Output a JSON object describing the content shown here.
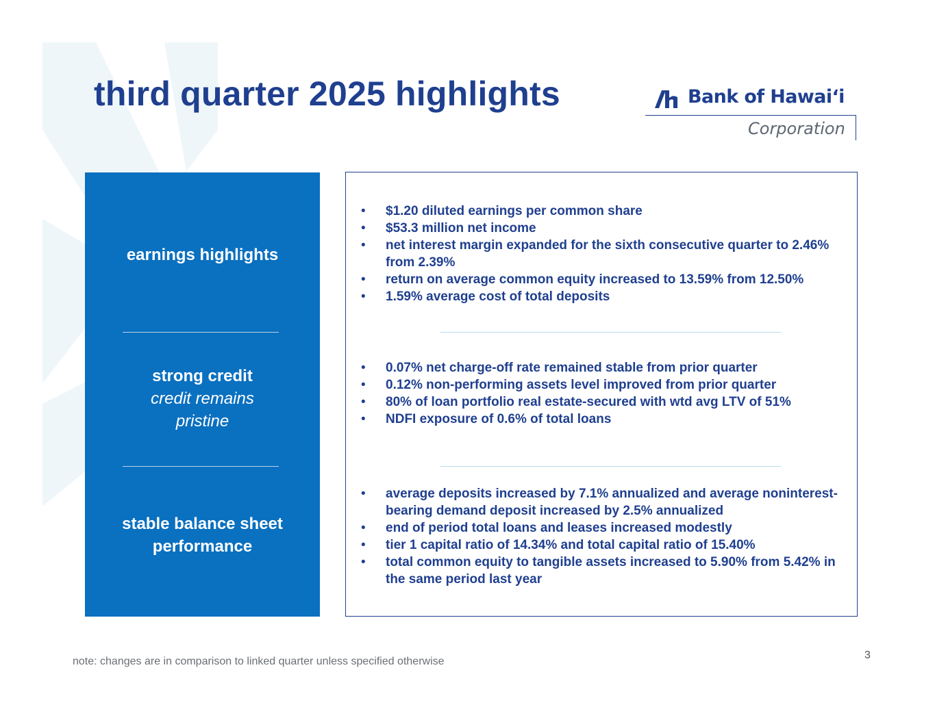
{
  "slide": {
    "title": "third quarter 2025 highlights",
    "page_number": "3",
    "note": "note: changes are in comparison to linked quarter unless specified otherwise"
  },
  "logo": {
    "name": "Bank of Hawaiʻi",
    "subtitle": "Corporation",
    "color": "#1f3f8f"
  },
  "colors": {
    "title": "#1f3f8f",
    "left_panel": "#0a70c0",
    "bullet_text": "#1f3f8f",
    "background_mark": "#eef6f9"
  },
  "sections": [
    {
      "heading": "earnings highlights",
      "subheading": "",
      "bullets": [
        "$1.20 diluted earnings per common share",
        "$53.3 million net income",
        "net interest margin expanded for the sixth consecutive quarter to 2.46% from 2.39%",
        "return on average common equity increased to 13.59% from 12.50%",
        "1.59% average cost of total deposits"
      ]
    },
    {
      "heading": "strong credit",
      "subheading": "credit remains pristine",
      "bullets": [
        "0.07% net charge-off rate remained stable from prior quarter",
        "0.12% non-performing assets level improved from prior quarter",
        "80% of loan portfolio real estate-secured with wtd avg LTV of 51%",
        "NDFI exposure of 0.6% of total loans"
      ]
    },
    {
      "heading": "stable balance sheet performance",
      "subheading": "",
      "bullets": [
        "average deposits increased by 7.1% annualized and average noninterest-bearing demand deposit increased by 2.5% annualized",
        "end of period total loans and leases increased modestly",
        "tier 1 capital ratio of 14.34% and total capital ratio of 15.40%",
        "total common equity to tangible assets increased to 5.90% from 5.42% in the same period last year"
      ]
    }
  ]
}
